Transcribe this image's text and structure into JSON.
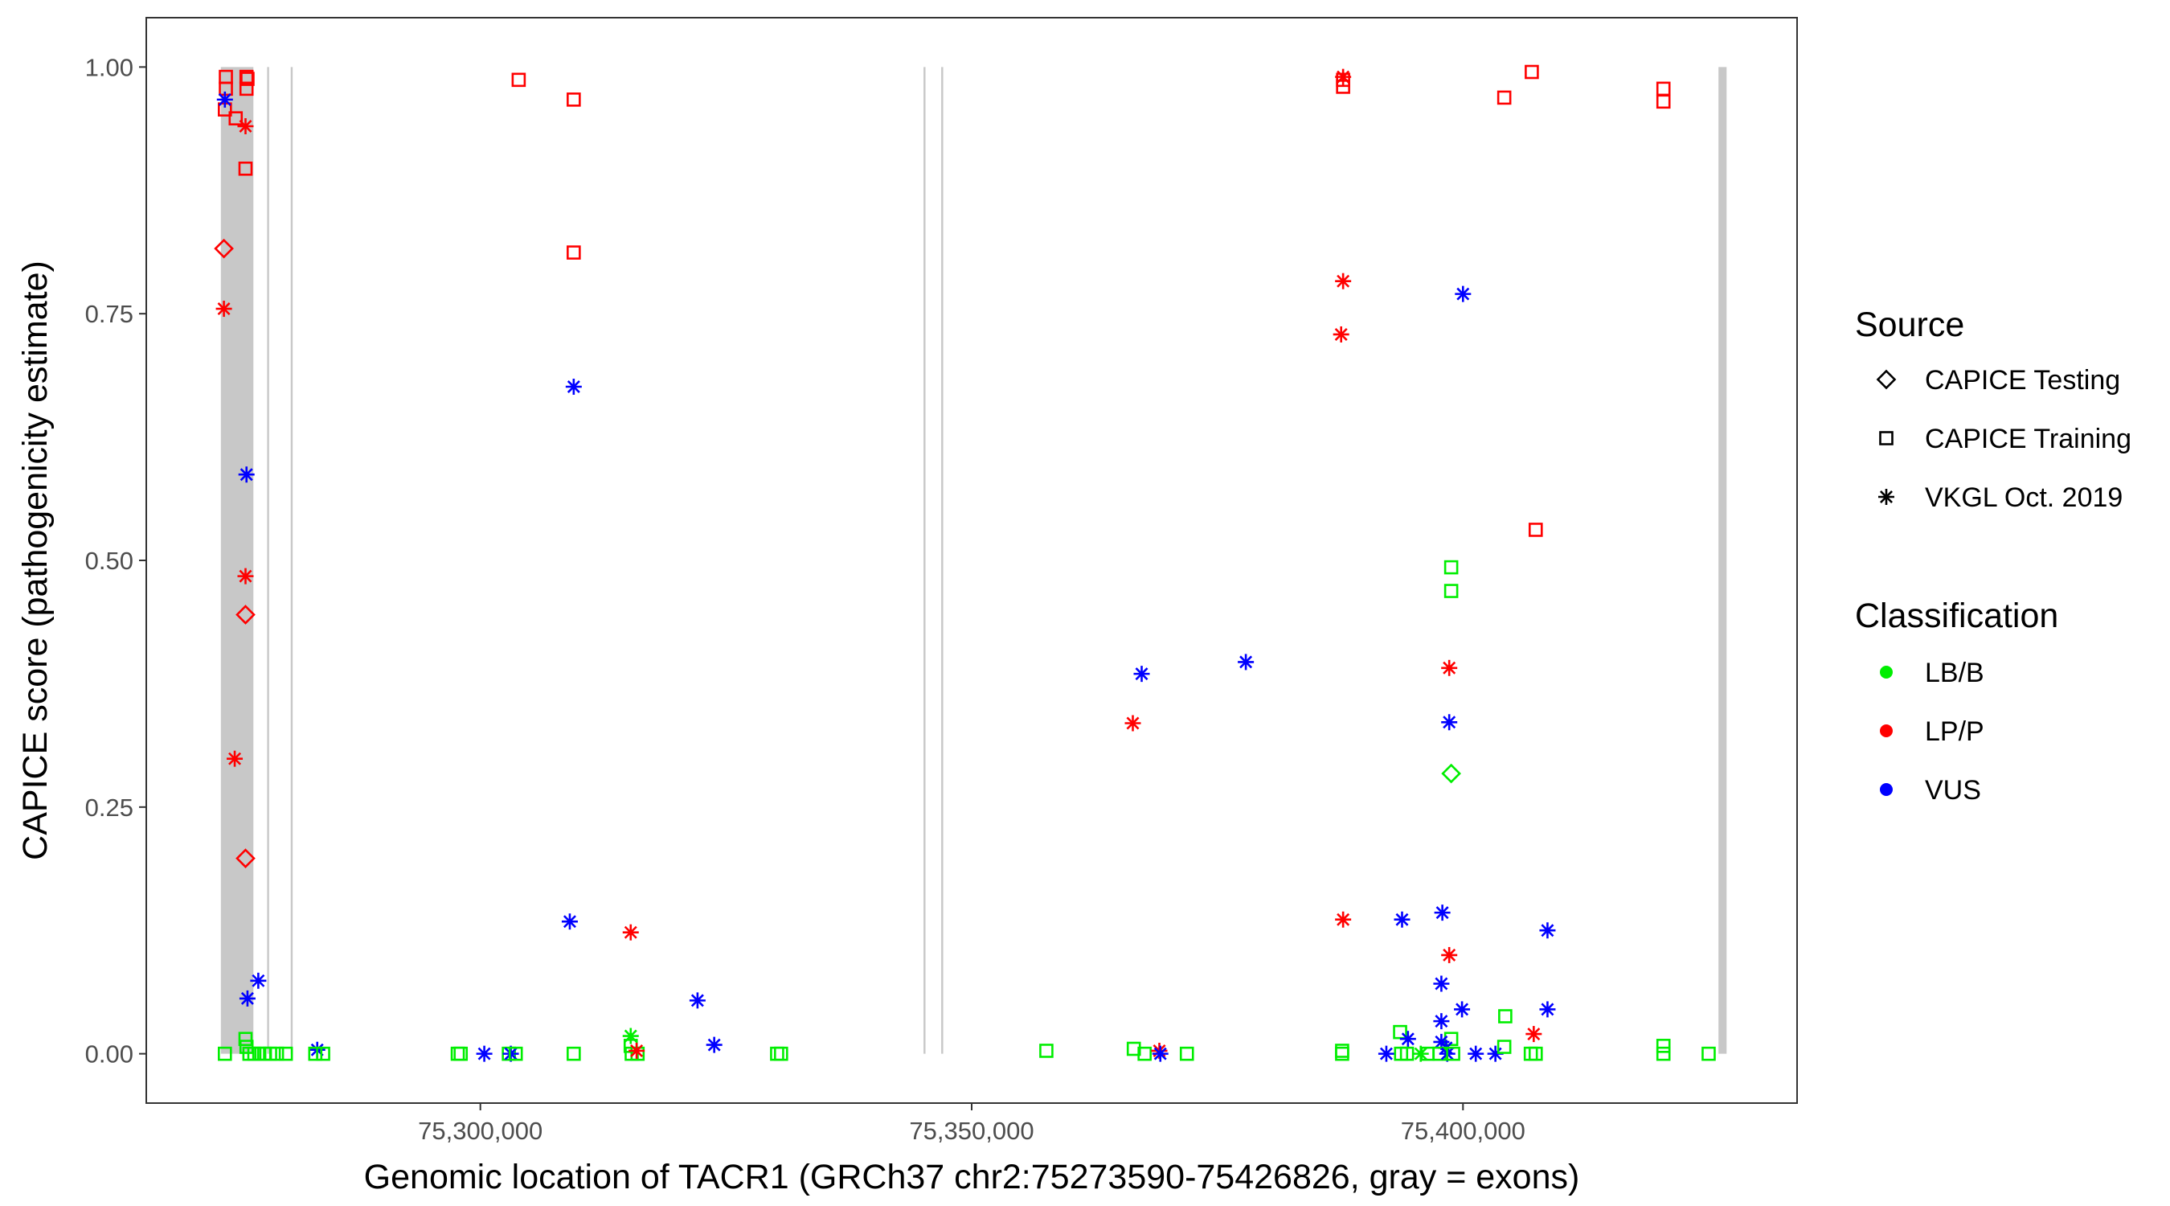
{
  "chart_data": {
    "type": "scatter",
    "title": "",
    "xlabel": "Genomic location of TACR1 (GRCh37 chr2:75273590-75426826, gray = exons)",
    "ylabel": "CAPICE score (pathogenicity estimate)",
    "xlim": [
      75266000,
      75434000
    ],
    "ylim": [
      -0.05,
      1.05
    ],
    "xticks": [
      75300000,
      75350000,
      75400000
    ],
    "xtick_labels": [
      "75,300,000",
      "75,350,000",
      "75,400,000"
    ],
    "yticks": [
      0,
      0.25,
      0.5,
      0.75,
      1.0
    ],
    "ytick_labels": [
      "0.00",
      "0.25",
      "0.50",
      "0.75",
      "1.00"
    ],
    "grid": false,
    "exons": [
      {
        "start": 75273590,
        "end": 75276900
      },
      {
        "start": 75278300,
        "end": 75278500
      },
      {
        "start": 75280700,
        "end": 75280900
      },
      {
        "start": 75345100,
        "end": 75345300
      },
      {
        "start": 75346900,
        "end": 75347100
      },
      {
        "start": 75426000,
        "end": 75426826
      }
    ],
    "exon_color": "#c8c8c8",
    "legend": {
      "placement": "right",
      "source_title": "Source",
      "source_items": [
        {
          "label": "CAPICE Testing",
          "shape": "diamond"
        },
        {
          "label": "CAPICE Training",
          "shape": "square"
        },
        {
          "label": "VKGL Oct. 2019",
          "shape": "asterisk"
        }
      ],
      "classification_title": "Classification",
      "classification_items": [
        {
          "label": "LB/B",
          "color": "#00ee00"
        },
        {
          "label": "LP/P",
          "color": "#ff0000"
        },
        {
          "label": "VUS",
          "color": "#0000ff"
        }
      ]
    },
    "points": [
      {
        "x": 75274100,
        "y": 0.99,
        "shape": "square",
        "cls": "LP/P"
      },
      {
        "x": 75274100,
        "y": 0.978,
        "shape": "square",
        "cls": "LP/P"
      },
      {
        "x": 75274000,
        "y": 0.957,
        "shape": "square",
        "cls": "LP/P"
      },
      {
        "x": 75275100,
        "y": 0.948,
        "shape": "square",
        "cls": "LP/P"
      },
      {
        "x": 75276200,
        "y": 0.99,
        "shape": "square",
        "cls": "LP/P"
      },
      {
        "x": 75276300,
        "y": 0.988,
        "shape": "square",
        "cls": "LP/P"
      },
      {
        "x": 75276200,
        "y": 0.978,
        "shape": "square",
        "cls": "LP/P"
      },
      {
        "x": 75276100,
        "y": 0.897,
        "shape": "square",
        "cls": "LP/P"
      },
      {
        "x": 75274000,
        "y": 0.967,
        "shape": "asterisk",
        "cls": "VUS"
      },
      {
        "x": 75276100,
        "y": 0.94,
        "shape": "asterisk",
        "cls": "LP/P"
      },
      {
        "x": 75273900,
        "y": 0.816,
        "shape": "diamond",
        "cls": "LP/P"
      },
      {
        "x": 75273900,
        "y": 0.755,
        "shape": "asterisk",
        "cls": "LP/P"
      },
      {
        "x": 75276200,
        "y": 0.587,
        "shape": "asterisk",
        "cls": "VUS"
      },
      {
        "x": 75276100,
        "y": 0.484,
        "shape": "asterisk",
        "cls": "LP/P"
      },
      {
        "x": 75276100,
        "y": 0.445,
        "shape": "diamond",
        "cls": "LP/P"
      },
      {
        "x": 75275000,
        "y": 0.299,
        "shape": "asterisk",
        "cls": "LP/P"
      },
      {
        "x": 75276100,
        "y": 0.198,
        "shape": "diamond",
        "cls": "LP/P"
      },
      {
        "x": 75277400,
        "y": 0.074,
        "shape": "asterisk",
        "cls": "VUS"
      },
      {
        "x": 75276300,
        "y": 0.056,
        "shape": "asterisk",
        "cls": "VUS"
      },
      {
        "x": 75276100,
        "y": 0.015,
        "shape": "square",
        "cls": "LB/B"
      },
      {
        "x": 75276200,
        "y": 0.007,
        "shape": "square",
        "cls": "LB/B"
      },
      {
        "x": 75274000,
        "y": 0.0,
        "shape": "square",
        "cls": "LB/B"
      },
      {
        "x": 75276500,
        "y": 0.0,
        "shape": "square",
        "cls": "LB/B"
      },
      {
        "x": 75277000,
        "y": 0.0,
        "shape": "square",
        "cls": "LB/B"
      },
      {
        "x": 75277500,
        "y": 0.0,
        "shape": "square",
        "cls": "LB/B"
      },
      {
        "x": 75278000,
        "y": 0.0,
        "shape": "square",
        "cls": "LB/B"
      },
      {
        "x": 75278600,
        "y": 0.0,
        "shape": "square",
        "cls": "LB/B"
      },
      {
        "x": 75279300,
        "y": 0.0,
        "shape": "square",
        "cls": "LB/B"
      },
      {
        "x": 75280200,
        "y": 0.0,
        "shape": "square",
        "cls": "LB/B"
      },
      {
        "x": 75283400,
        "y": 0.004,
        "shape": "asterisk",
        "cls": "VUS"
      },
      {
        "x": 75283200,
        "y": 0.0,
        "shape": "square",
        "cls": "LB/B"
      },
      {
        "x": 75284000,
        "y": 0.0,
        "shape": "square",
        "cls": "LB/B"
      },
      {
        "x": 75297700,
        "y": 0.0,
        "shape": "square",
        "cls": "LB/B"
      },
      {
        "x": 75298000,
        "y": 0.0,
        "shape": "square",
        "cls": "LB/B"
      },
      {
        "x": 75300400,
        "y": 0.0,
        "shape": "asterisk",
        "cls": "VUS"
      },
      {
        "x": 75302900,
        "y": 0.0,
        "shape": "square",
        "cls": "LB/B"
      },
      {
        "x": 75303100,
        "y": 0.0,
        "shape": "asterisk",
        "cls": "VUS"
      },
      {
        "x": 75303600,
        "y": 0.0,
        "shape": "square",
        "cls": "LB/B"
      },
      {
        "x": 75303900,
        "y": 0.987,
        "shape": "square",
        "cls": "LP/P"
      },
      {
        "x": 75309500,
        "y": 0.967,
        "shape": "square",
        "cls": "LP/P"
      },
      {
        "x": 75309500,
        "y": 0.812,
        "shape": "square",
        "cls": "LP/P"
      },
      {
        "x": 75309500,
        "y": 0.676,
        "shape": "asterisk",
        "cls": "VUS"
      },
      {
        "x": 75309100,
        "y": 0.134,
        "shape": "asterisk",
        "cls": "VUS"
      },
      {
        "x": 75309500,
        "y": 0.0,
        "shape": "square",
        "cls": "LB/B"
      },
      {
        "x": 75315300,
        "y": 0.123,
        "shape": "asterisk",
        "cls": "LP/P"
      },
      {
        "x": 75315300,
        "y": 0.018,
        "shape": "asterisk",
        "cls": "LB/B"
      },
      {
        "x": 75315300,
        "y": 0.008,
        "shape": "square",
        "cls": "LB/B"
      },
      {
        "x": 75315400,
        "y": 0.0,
        "shape": "square",
        "cls": "LB/B"
      },
      {
        "x": 75316000,
        "y": 0.0,
        "shape": "square",
        "cls": "LB/B"
      },
      {
        "x": 75315900,
        "y": 0.003,
        "shape": "asterisk",
        "cls": "LP/P"
      },
      {
        "x": 75322100,
        "y": 0.054,
        "shape": "asterisk",
        "cls": "VUS"
      },
      {
        "x": 75323800,
        "y": 0.009,
        "shape": "asterisk",
        "cls": "VUS"
      },
      {
        "x": 75330200,
        "y": 0.0,
        "shape": "square",
        "cls": "LB/B"
      },
      {
        "x": 75330600,
        "y": 0.0,
        "shape": "square",
        "cls": "LB/B"
      },
      {
        "x": 75357600,
        "y": 0.003,
        "shape": "square",
        "cls": "LB/B"
      },
      {
        "x": 75366400,
        "y": 0.335,
        "shape": "asterisk",
        "cls": "LP/P"
      },
      {
        "x": 75367300,
        "y": 0.385,
        "shape": "asterisk",
        "cls": "VUS"
      },
      {
        "x": 75366500,
        "y": 0.005,
        "shape": "square",
        "cls": "LB/B"
      },
      {
        "x": 75367600,
        "y": 0.0,
        "shape": "square",
        "cls": "LB/B"
      },
      {
        "x": 75369100,
        "y": 0.003,
        "shape": "asterisk",
        "cls": "LP/P"
      },
      {
        "x": 75369200,
        "y": 0.0,
        "shape": "asterisk",
        "cls": "VUS"
      },
      {
        "x": 75371900,
        "y": 0.0,
        "shape": "square",
        "cls": "LB/B"
      },
      {
        "x": 75377900,
        "y": 0.397,
        "shape": "asterisk",
        "cls": "VUS"
      },
      {
        "x": 75387800,
        "y": 0.99,
        "shape": "asterisk",
        "cls": "LP/P"
      },
      {
        "x": 75387800,
        "y": 0.987,
        "shape": "square",
        "cls": "LP/P"
      },
      {
        "x": 75387800,
        "y": 0.98,
        "shape": "square",
        "cls": "LP/P"
      },
      {
        "x": 75387800,
        "y": 0.783,
        "shape": "asterisk",
        "cls": "LP/P"
      },
      {
        "x": 75387600,
        "y": 0.729,
        "shape": "asterisk",
        "cls": "LP/P"
      },
      {
        "x": 75387800,
        "y": 0.136,
        "shape": "asterisk",
        "cls": "LP/P"
      },
      {
        "x": 75387700,
        "y": 0.003,
        "shape": "square",
        "cls": "LB/B"
      },
      {
        "x": 75387700,
        "y": 0.0,
        "shape": "square",
        "cls": "LB/B"
      },
      {
        "x": 75400000,
        "y": 0.77,
        "shape": "asterisk",
        "cls": "VUS"
      },
      {
        "x": 75398800,
        "y": 0.493,
        "shape": "square",
        "cls": "LB/B"
      },
      {
        "x": 75398800,
        "y": 0.469,
        "shape": "square",
        "cls": "LB/B"
      },
      {
        "x": 75398600,
        "y": 0.391,
        "shape": "asterisk",
        "cls": "LP/P"
      },
      {
        "x": 75398600,
        "y": 0.336,
        "shape": "asterisk",
        "cls": "VUS"
      },
      {
        "x": 75398800,
        "y": 0.284,
        "shape": "diamond",
        "cls": "LB/B"
      },
      {
        "x": 75393800,
        "y": 0.136,
        "shape": "asterisk",
        "cls": "VUS"
      },
      {
        "x": 75397900,
        "y": 0.143,
        "shape": "asterisk",
        "cls": "VUS"
      },
      {
        "x": 75398600,
        "y": 0.1,
        "shape": "asterisk",
        "cls": "LP/P"
      },
      {
        "x": 75397800,
        "y": 0.071,
        "shape": "asterisk",
        "cls": "VUS"
      },
      {
        "x": 75399900,
        "y": 0.045,
        "shape": "asterisk",
        "cls": "VUS"
      },
      {
        "x": 75397800,
        "y": 0.033,
        "shape": "asterisk",
        "cls": "VUS"
      },
      {
        "x": 75393600,
        "y": 0.022,
        "shape": "square",
        "cls": "LB/B"
      },
      {
        "x": 75394400,
        "y": 0.015,
        "shape": "asterisk",
        "cls": "VUS"
      },
      {
        "x": 75398800,
        "y": 0.015,
        "shape": "square",
        "cls": "LB/B"
      },
      {
        "x": 75397800,
        "y": 0.012,
        "shape": "asterisk",
        "cls": "VUS"
      },
      {
        "x": 75398300,
        "y": 0.006,
        "shape": "asterisk",
        "cls": "VUS"
      },
      {
        "x": 75392200,
        "y": 0.0,
        "shape": "asterisk",
        "cls": "VUS"
      },
      {
        "x": 75393700,
        "y": 0.0,
        "shape": "square",
        "cls": "LB/B"
      },
      {
        "x": 75394300,
        "y": 0.0,
        "shape": "square",
        "cls": "LB/B"
      },
      {
        "x": 75395700,
        "y": 0.0,
        "shape": "asterisk",
        "cls": "LB/B"
      },
      {
        "x": 75396400,
        "y": 0.0,
        "shape": "square",
        "cls": "LB/B"
      },
      {
        "x": 75397600,
        "y": 0.0,
        "shape": "square",
        "cls": "LB/B"
      },
      {
        "x": 75398400,
        "y": 0.0,
        "shape": "asterisk",
        "cls": "VUS"
      },
      {
        "x": 75399000,
        "y": 0.0,
        "shape": "square",
        "cls": "LB/B"
      },
      {
        "x": 75401300,
        "y": 0.0,
        "shape": "asterisk",
        "cls": "VUS"
      },
      {
        "x": 75403300,
        "y": 0.0,
        "shape": "asterisk",
        "cls": "VUS"
      },
      {
        "x": 75404300,
        "y": 0.038,
        "shape": "square",
        "cls": "LB/B"
      },
      {
        "x": 75404200,
        "y": 0.007,
        "shape": "square",
        "cls": "LB/B"
      },
      {
        "x": 75404200,
        "y": 0.969,
        "shape": "square",
        "cls": "LP/P"
      },
      {
        "x": 75407000,
        "y": 0.995,
        "shape": "square",
        "cls": "LP/P"
      },
      {
        "x": 75407400,
        "y": 0.531,
        "shape": "square",
        "cls": "LP/P"
      },
      {
        "x": 75408600,
        "y": 0.125,
        "shape": "asterisk",
        "cls": "VUS"
      },
      {
        "x": 75408600,
        "y": 0.045,
        "shape": "asterisk",
        "cls": "VUS"
      },
      {
        "x": 75407200,
        "y": 0.02,
        "shape": "asterisk",
        "cls": "LP/P"
      },
      {
        "x": 75406900,
        "y": 0.0,
        "shape": "square",
        "cls": "LB/B"
      },
      {
        "x": 75407400,
        "y": 0.0,
        "shape": "square",
        "cls": "LB/B"
      },
      {
        "x": 75420400,
        "y": 0.978,
        "shape": "square",
        "cls": "LP/P"
      },
      {
        "x": 75420400,
        "y": 0.965,
        "shape": "square",
        "cls": "LP/P"
      },
      {
        "x": 75420400,
        "y": 0.008,
        "shape": "square",
        "cls": "LB/B"
      },
      {
        "x": 75420400,
        "y": 0.0,
        "shape": "square",
        "cls": "LB/B"
      },
      {
        "x": 75425000,
        "y": 0.0,
        "shape": "square",
        "cls": "LB/B"
      }
    ]
  }
}
